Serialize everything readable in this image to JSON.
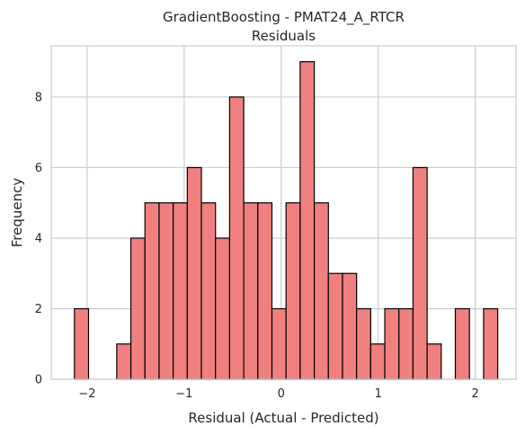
{
  "chart_data": {
    "type": "bar",
    "title": "GradientBoosting - PMAT24_A_RTCR",
    "subtitle": "Residuals",
    "xlabel": "Residual (Actual - Predicted)",
    "ylabel": "Frequency",
    "xlim": [
      -2.37,
      2.42
    ],
    "ylim": [
      0,
      9.45
    ],
    "xticks": [
      -2,
      -1,
      0,
      1,
      2
    ],
    "xtick_labels": [
      "−2",
      "−1",
      "0",
      "1",
      "2"
    ],
    "yticks": [
      0,
      2,
      4,
      6,
      8
    ],
    "grid": true,
    "bin_start": -2.131,
    "bin_width": 0.1454,
    "counts": [
      2,
      0,
      0,
      1,
      4,
      5,
      5,
      5,
      6,
      5,
      4,
      8,
      5,
      5,
      2,
      5,
      9,
      5,
      3,
      3,
      2,
      1,
      2,
      2,
      6,
      1,
      0,
      2,
      0,
      2
    ],
    "colors": {
      "bar_fill": "#f08080",
      "bar_edge": "#000000",
      "grid": "#cccccc"
    }
  }
}
